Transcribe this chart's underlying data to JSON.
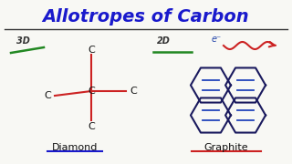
{
  "title": "Allotropes of Carbon",
  "title_color": "#1a1acc",
  "title_fontsize": 14,
  "bg_color": "#f8f8f4",
  "label_diamond": "Diamond",
  "label_graphite": "Graphite",
  "label_3d": "3D",
  "label_2d": "2D",
  "label_e": "e⁻",
  "bond_color": "#cc2222",
  "hex_color": "#1a1a5e",
  "dbl_color": "#2244bb",
  "green_color": "#228822",
  "arrow_color": "#cc2222",
  "underline_diamond": "#1a1acc",
  "underline_graphite": "#cc2222"
}
